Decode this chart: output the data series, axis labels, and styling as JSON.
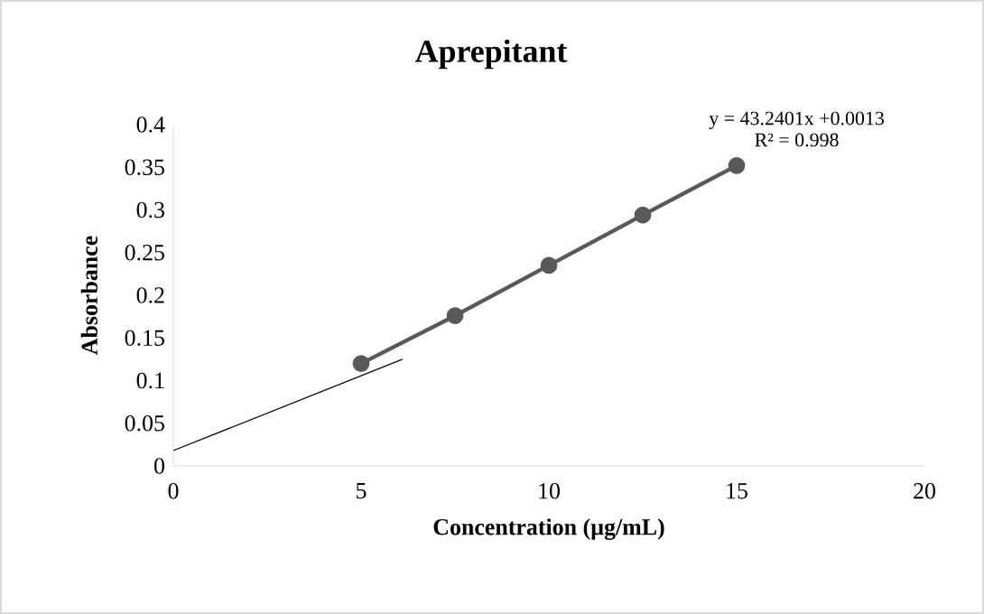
{
  "chart_data": {
    "type": "line",
    "title": "Aprepitant",
    "xlabel": "Concentration (µg/mL)",
    "ylabel": "Absorbance",
    "x": [
      5,
      7.5,
      10,
      12.5,
      15
    ],
    "series": [
      {
        "color": "#595959",
        "marker": "circle",
        "values": [
          0.12,
          0.176,
          0.235,
          0.294,
          0.352
        ]
      },
      {
        "color": "#000000",
        "marker": "none",
        "x": [
          0,
          6.1
        ],
        "values": [
          0.018,
          0.125
        ]
      }
    ],
    "annotations": [
      "y = 43.2401x +0.0013",
      "R² = 0.998"
    ],
    "xlim": [
      0,
      20
    ],
    "ylim": [
      0,
      0.4
    ],
    "xticks": [
      0,
      5,
      10,
      15,
      20
    ],
    "yticks": [
      0,
      0.05,
      0.1,
      0.15,
      0.2,
      0.25,
      0.3,
      0.35,
      0.4
    ],
    "grid": false
  }
}
